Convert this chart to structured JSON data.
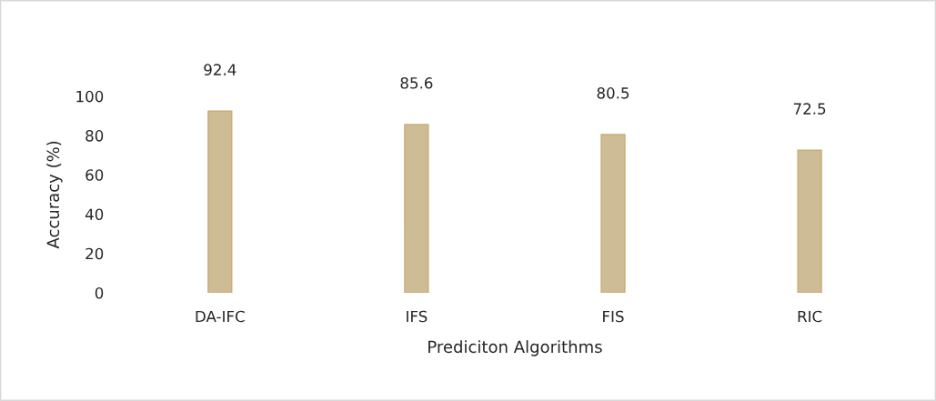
{
  "chart_data": {
    "type": "bar",
    "xlabel": "Prediciton Algorithms",
    "ylabel": "Accuracy (%)",
    "categories": [
      "DA-IFC",
      "IFS",
      "FIS",
      "RIC"
    ],
    "values": [
      92.4,
      85.6,
      80.5,
      72.5
    ],
    "color": "#d8c08c",
    "ylim": [
      0,
      100
    ],
    "yticks": [
      0,
      20,
      40,
      60,
      80,
      100
    ],
    "data_labels": true,
    "grid": false,
    "legend": false
  }
}
